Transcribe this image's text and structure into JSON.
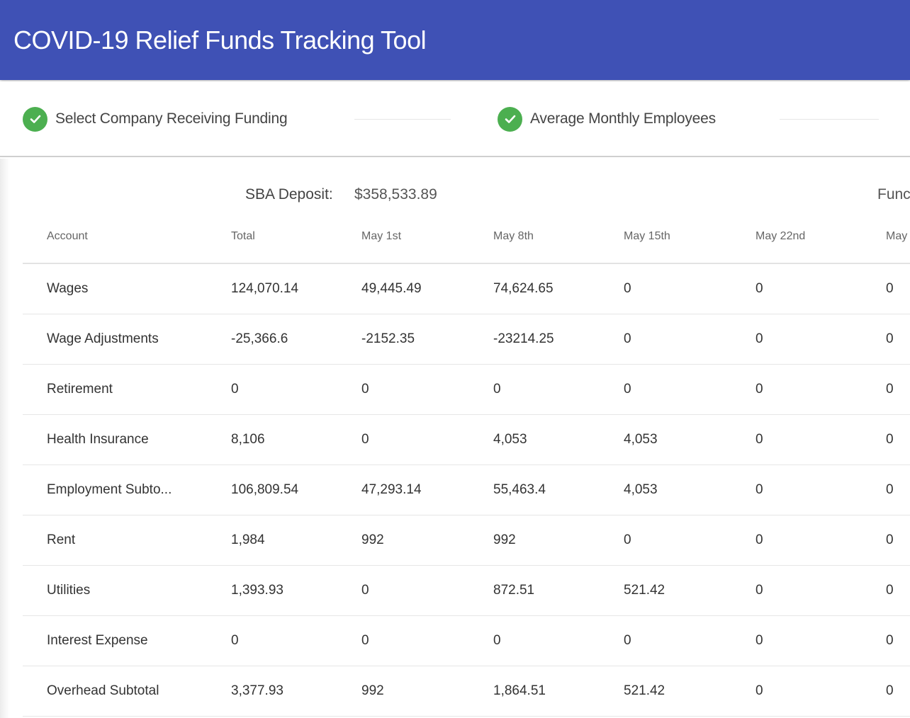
{
  "header": {
    "title": "COVID-19 Relief Funds Tracking Tool",
    "color": "#3f51b5"
  },
  "stepper": {
    "steps": [
      {
        "label": "Select Company Receiving Funding",
        "icon": "check-circle-icon",
        "status": "complete"
      },
      {
        "label": "Average Monthly Employees",
        "icon": "check-circle-icon",
        "status": "complete"
      }
    ],
    "complete_color": "#4caf50"
  },
  "summary": {
    "sba_label": "SBA Deposit:",
    "sba_value": "$358,533.89",
    "funds_label": "Func"
  },
  "table": {
    "columns": [
      "Account",
      "Total",
      "May 1st",
      "May 8th",
      "May 15th",
      "May 22nd",
      "May"
    ],
    "rows": [
      [
        "Wages",
        "124,070.14",
        "49,445.49",
        "74,624.65",
        "0",
        "0",
        "0"
      ],
      [
        "Wage Adjustments",
        "-25,366.6",
        "-2152.35",
        "-23214.25",
        "0",
        "0",
        "0"
      ],
      [
        "Retirement",
        "0",
        "0",
        "0",
        "0",
        "0",
        "0"
      ],
      [
        "Health Insurance",
        "8,106",
        "0",
        "4,053",
        "4,053",
        "0",
        "0"
      ],
      [
        "Employment Subto...",
        "106,809.54",
        "47,293.14",
        "55,463.4",
        "4,053",
        "0",
        "0"
      ],
      [
        "Rent",
        "1,984",
        "992",
        "992",
        "0",
        "0",
        "0"
      ],
      [
        "Utilities",
        "1,393.93",
        "0",
        "872.51",
        "521.42",
        "0",
        "0"
      ],
      [
        "Interest Expense",
        "0",
        "0",
        "0",
        "0",
        "0",
        "0"
      ],
      [
        "Overhead Subtotal",
        "3,377.93",
        "992",
        "1,864.51",
        "521.42",
        "0",
        "0"
      ]
    ]
  }
}
